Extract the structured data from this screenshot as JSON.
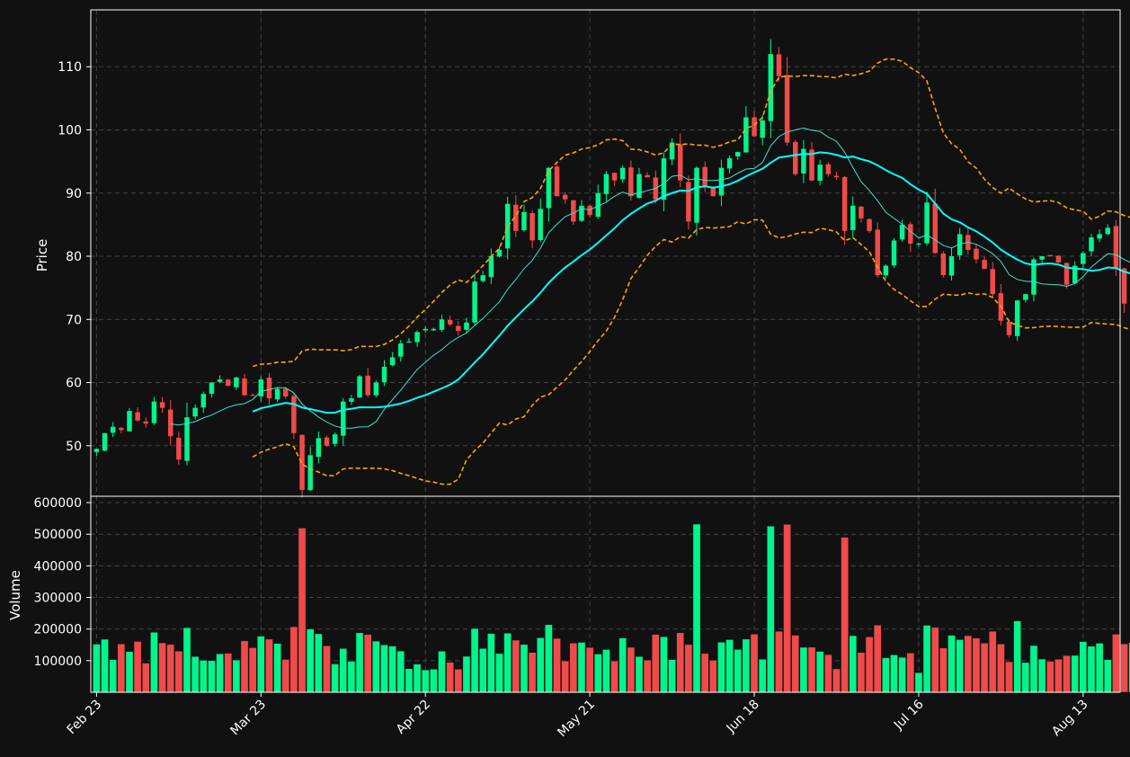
{
  "chart_data": {
    "type": "candlestick",
    "colors": {
      "background": "#111111",
      "up": "#00f58c",
      "down": "#f04a4a",
      "sma_fast": "#40e0d0",
      "sma_slow": "#00ffff",
      "bollinger": "#ffa500",
      "grid": "#444444",
      "axes": "#ffffff"
    },
    "price_panel": {
      "ylabel": "Price",
      "ylim": [
        42,
        119
      ],
      "yticks": [
        50,
        60,
        70,
        80,
        90,
        100,
        110
      ]
    },
    "volume_panel": {
      "ylabel": "Volume",
      "ylim": [
        0,
        620000
      ],
      "yticks": [
        100000,
        200000,
        300000,
        400000,
        500000,
        600000
      ]
    },
    "x_range": [
      -0.7,
      124.5
    ],
    "x_ticks": [
      {
        "i": 0,
        "label": "Feb 23"
      },
      {
        "i": 20,
        "label": "Mar 23"
      },
      {
        "i": 40,
        "label": "Apr 22"
      },
      {
        "i": 60,
        "label": "May 21"
      },
      {
        "i": 80,
        "label": "Jun 18"
      },
      {
        "i": 100,
        "label": "Jul 16"
      },
      {
        "i": 120,
        "label": "Aug 13"
      }
    ],
    "closes": [
      49.5,
      52.0,
      53.0,
      52.5,
      55.5,
      54.0,
      53.5,
      57.0,
      56.0,
      51.5,
      47.8,
      54.5,
      56.0,
      58.2,
      60.0,
      60.5,
      59.5,
      60.8,
      58.0,
      58.0,
      60.5,
      57.5,
      59.0,
      57.8,
      52.0,
      43.0,
      48.5,
      51.2,
      50.0,
      51.8,
      57.0,
      57.5,
      61.0,
      58.0,
      60.0,
      62.5,
      64.0,
      66.2,
      66.5,
      68.0,
      68.5,
      68.5,
      70.0,
      69.2,
      68.2,
      69.5,
      76.0,
      77.0,
      80.0,
      81.0,
      88.3,
      84.0,
      87.0,
      82.5,
      87.5,
      94.0,
      89.5,
      89.0,
      85.5,
      88.0,
      86.5,
      90.0,
      93.0,
      92.0,
      94.0,
      89.5,
      93.0,
      92.5,
      89.0,
      95.5,
      98.0,
      92.0,
      85.5,
      94.0,
      91.0,
      89.5,
      94.0,
      95.5,
      96.5,
      102.0,
      99.0,
      101.5,
      112.0,
      108.5,
      98.0,
      93.0,
      97.0,
      92.0,
      94.5,
      93.0,
      92.5,
      84.0,
      88.0,
      86.0,
      84.0,
      77.0,
      78.5,
      82.5,
      85.0,
      82.0,
      82.0,
      88.5,
      80.5,
      77.0,
      80.0,
      83.5,
      81.0,
      79.5,
      78.0,
      74.0,
      69.8,
      67.5,
      73.0,
      74.0,
      79.5,
      80.0,
      80.0,
      79.0,
      75.5,
      78.5,
      80.5,
      83.0,
      83.5,
      84.5,
      78.0,
      72.5,
      73.5
    ]
  }
}
